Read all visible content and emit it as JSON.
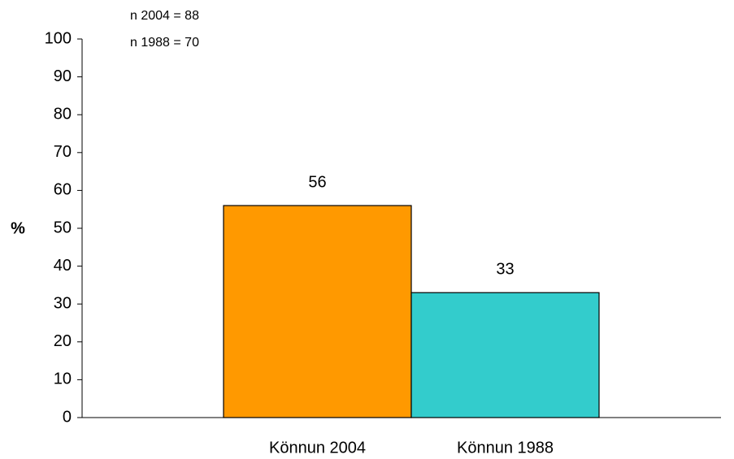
{
  "chart_data": {
    "type": "bar",
    "annotations": [
      "n 2004 = 88",
      "n 1988 = 70"
    ],
    "ylabel": "%",
    "categories": [
      "Könnun 2004",
      "Könnun 1988"
    ],
    "values": [
      56,
      33
    ],
    "colors": [
      "#ff9900",
      "#33cccc"
    ],
    "ylim": [
      0,
      100
    ],
    "yticks": [
      0,
      10,
      20,
      30,
      40,
      50,
      60,
      70,
      80,
      90,
      100
    ],
    "grid": false
  }
}
